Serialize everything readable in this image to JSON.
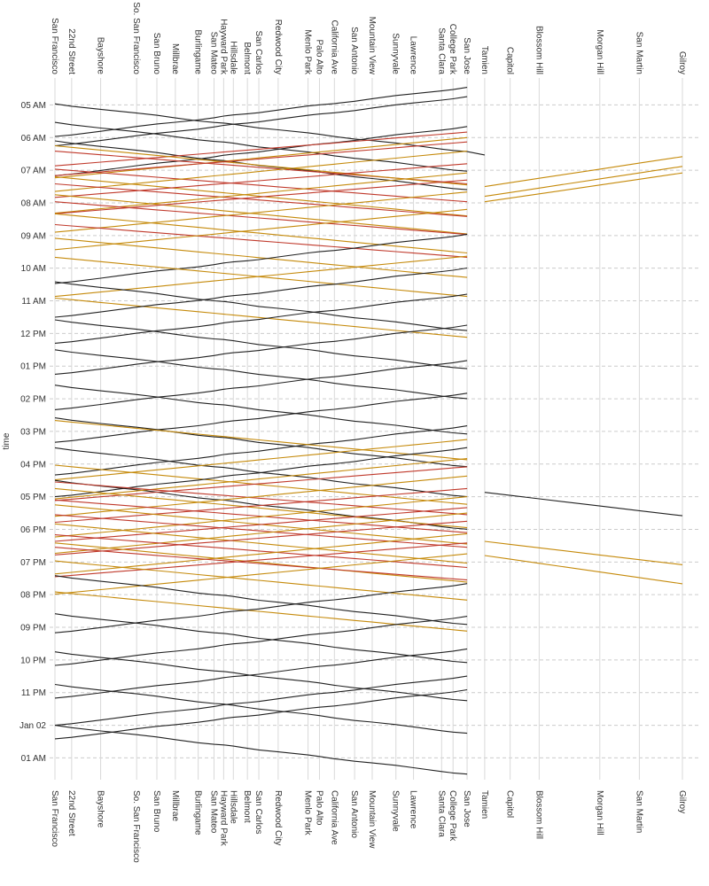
{
  "chart_data": {
    "type": "line",
    "ylabel": "time",
    "stations": [
      {
        "name": "San Francisco",
        "distance": 0
      },
      {
        "name": "22nd Street",
        "distance": 1.9
      },
      {
        "name": "Bayshore",
        "distance": 5.2
      },
      {
        "name": "So. San Francisco",
        "distance": 9.3
      },
      {
        "name": "San Bruno",
        "distance": 11.6
      },
      {
        "name": "Millbrae",
        "distance": 13.7
      },
      {
        "name": "Burlingame",
        "distance": 16.3
      },
      {
        "name": "San Mateo",
        "distance": 18.1
      },
      {
        "name": "Hayward Park",
        "distance": 19.2
      },
      {
        "name": "Hillsdale",
        "distance": 20.3
      },
      {
        "name": "Belmont",
        "distance": 21.9
      },
      {
        "name": "San Carlos",
        "distance": 23.2
      },
      {
        "name": "Redwood City",
        "distance": 25.4
      },
      {
        "name": "Menlo Park",
        "distance": 28.8
      },
      {
        "name": "Palo Alto",
        "distance": 30.1
      },
      {
        "name": "California Ave",
        "distance": 31.8
      },
      {
        "name": "San Antonio",
        "distance": 34.1
      },
      {
        "name": "Mountain View",
        "distance": 36.1
      },
      {
        "name": "Sunnyvale",
        "distance": 38.8
      },
      {
        "name": "Lawrence",
        "distance": 40.8
      },
      {
        "name": "Santa Clara",
        "distance": 44.0
      },
      {
        "name": "College Park",
        "distance": 45.3
      },
      {
        "name": "San Jose",
        "distance": 46.9
      },
      {
        "name": "Tamien",
        "distance": 48.9
      },
      {
        "name": "Capitol",
        "distance": 51.8
      },
      {
        "name": "Blossom Hill",
        "distance": 55.1
      },
      {
        "name": "Morgan Hill",
        "distance": 62.0
      },
      {
        "name": "San Martin",
        "distance": 66.5
      },
      {
        "name": "Gilroy",
        "distance": 71.4
      }
    ],
    "y_ticks": [
      "05 AM",
      "06 AM",
      "07 AM",
      "08 AM",
      "09 AM",
      "10 AM",
      "11 AM",
      "12 PM",
      "01 PM",
      "02 PM",
      "03 PM",
      "04 PM",
      "05 PM",
      "06 PM",
      "07 PM",
      "08 PM",
      "09 PM",
      "10 PM",
      "11 PM",
      "Jan 02",
      "01 AM"
    ],
    "ylim": [
      "04:30",
      "25:40"
    ],
    "x_axis": "station distance along the line, labels at top and bottom",
    "colors": {
      "local": "#222222",
      "limited": "#c58a0b",
      "express": "#c0392b"
    },
    "train_types": {
      "N": "local",
      "L": "limited",
      "B": "express"
    },
    "trains": [
      {
        "t": "N",
        "d": "S",
        "start": "04:58",
        "dur": 88,
        "via_sj": true,
        "ext": "Tamien"
      },
      {
        "t": "N",
        "d": "N",
        "start": "04:28",
        "dur": 90,
        "from": "San Jose"
      },
      {
        "t": "N",
        "d": "S",
        "start": "05:32",
        "dur": 90,
        "from": "San Francisco"
      },
      {
        "t": "N",
        "d": "N",
        "start": "04:45",
        "dur": 90,
        "from": "San Jose"
      },
      {
        "t": "N",
        "d": "S",
        "start": "06:06",
        "dur": 90,
        "from": "San Francisco"
      },
      {
        "t": "N",
        "d": "N",
        "start": "05:40",
        "dur": 90,
        "from": "San Jose"
      },
      {
        "t": "B",
        "d": "S",
        "start": "06:25",
        "dur": 60,
        "from": "San Francisco"
      },
      {
        "t": "B",
        "d": "N",
        "start": "05:50",
        "dur": 62,
        "from": "San Jose"
      },
      {
        "t": "L",
        "d": "S",
        "start": "06:15",
        "dur": 72,
        "from": "San Francisco"
      },
      {
        "t": "L",
        "d": "N",
        "start": "06:00",
        "dur": 74,
        "from": "San Jose"
      },
      {
        "t": "B",
        "d": "S",
        "start": "06:58",
        "dur": 60,
        "from": "San Francisco"
      },
      {
        "t": "B",
        "d": "N",
        "start": "06:08",
        "dur": 62,
        "from": "San Jose"
      },
      {
        "t": "L",
        "d": "S",
        "start": "07:12",
        "dur": 72,
        "from": "San Francisco"
      },
      {
        "t": "L",
        "d": "N",
        "start": "06:25",
        "dur": 74,
        "from": "San Jose"
      },
      {
        "t": "B",
        "d": "S",
        "start": "07:25",
        "dur": 60,
        "from": "San Francisco"
      },
      {
        "t": "B",
        "d": "N",
        "start": "06:48",
        "dur": 62,
        "from": "San Jose"
      },
      {
        "t": "L",
        "d": "S",
        "start": "07:45",
        "dur": 72,
        "from": "San Francisco"
      },
      {
        "t": "L",
        "d": "N",
        "start": "07:05",
        "dur": 74,
        "from": "San Jose"
      },
      {
        "t": "B",
        "d": "S",
        "start": "07:58",
        "dur": 60,
        "from": "San Francisco"
      },
      {
        "t": "B",
        "d": "N",
        "start": "07:18",
        "dur": 62,
        "from": "San Jose"
      },
      {
        "t": "L",
        "d": "S",
        "start": "08:20",
        "dur": 72,
        "from": "San Francisco"
      },
      {
        "t": "L",
        "d": "N",
        "start": "07:40",
        "dur": 74,
        "from": "San Jose"
      },
      {
        "t": "B",
        "d": "S",
        "start": "08:40",
        "dur": 60,
        "from": "San Francisco"
      },
      {
        "t": "L",
        "d": "N",
        "start": "08:12",
        "dur": 74,
        "from": "San Jose"
      },
      {
        "t": "L",
        "d": "S",
        "start": "09:05",
        "dur": 72,
        "from": "San Francisco"
      },
      {
        "t": "N",
        "d": "N",
        "start": "08:58",
        "dur": 90,
        "from": "San Jose"
      },
      {
        "t": "L",
        "d": "S",
        "start": "09:40",
        "dur": 72,
        "from": "San Francisco"
      },
      {
        "t": "L",
        "d": "N",
        "start": "09:38",
        "dur": 74,
        "from": "San Jose"
      },
      {
        "t": "L",
        "d": "S",
        "start": "10:55",
        "dur": 72,
        "from": "San Francisco"
      },
      {
        "t": "N",
        "d": "N",
        "start": "10:00",
        "dur": 90,
        "from": "San Jose"
      },
      {
        "t": "N",
        "d": "S",
        "start": "10:25",
        "dur": 90,
        "from": "San Francisco"
      },
      {
        "t": "N",
        "d": "N",
        "start": "10:48",
        "dur": 90,
        "from": "San Jose"
      },
      {
        "t": "N",
        "d": "S",
        "start": "11:35",
        "dur": 90,
        "from": "San Francisco"
      },
      {
        "t": "N",
        "d": "N",
        "start": "11:45",
        "dur": 90,
        "from": "San Jose"
      },
      {
        "t": "N",
        "d": "S",
        "start": "12:30",
        "dur": 90,
        "from": "San Francisco"
      },
      {
        "t": "N",
        "d": "N",
        "start": "12:50",
        "dur": 90,
        "from": "San Jose"
      },
      {
        "t": "N",
        "d": "S",
        "start": "13:35",
        "dur": 90,
        "from": "San Francisco"
      },
      {
        "t": "N",
        "d": "N",
        "start": "13:50",
        "dur": 90,
        "from": "San Jose"
      },
      {
        "t": "N",
        "d": "S",
        "start": "14:35",
        "dur": 90,
        "from": "San Francisco"
      },
      {
        "t": "N",
        "d": "N",
        "start": "14:50",
        "dur": 90,
        "from": "San Jose"
      },
      {
        "t": "L",
        "d": "S",
        "start": "14:40",
        "dur": 72,
        "from": "San Francisco"
      },
      {
        "t": "N",
        "d": "S",
        "start": "15:30",
        "dur": 90,
        "from": "San Francisco"
      },
      {
        "t": "L",
        "d": "N",
        "start": "15:15",
        "dur": 74,
        "from": "San Jose"
      },
      {
        "t": "L",
        "d": "S",
        "start": "16:02",
        "dur": 72,
        "from": "San Francisco"
      },
      {
        "t": "N",
        "d": "N",
        "start": "15:30",
        "dur": 90,
        "from": "San Jose"
      },
      {
        "t": "N",
        "d": "S",
        "start": "16:30",
        "dur": 90,
        "from": "San Francisco"
      },
      {
        "t": "L",
        "d": "N",
        "start": "15:50",
        "dur": 74,
        "from": "San Jose"
      },
      {
        "t": "B",
        "d": "S",
        "start": "16:33",
        "dur": 60,
        "from": "San Francisco"
      },
      {
        "t": "B",
        "d": "N",
        "start": "16:05",
        "dur": 62,
        "from": "San Jose"
      },
      {
        "t": "L",
        "d": "S",
        "start": "16:45",
        "dur": 72,
        "from": "San Francisco"
      },
      {
        "t": "L",
        "d": "N",
        "start": "16:22",
        "dur": 74,
        "from": "San Jose"
      },
      {
        "t": "B",
        "d": "S",
        "start": "17:06",
        "dur": 60,
        "from": "San Francisco"
      },
      {
        "t": "B",
        "d": "N",
        "start": "16:45",
        "dur": 62,
        "from": "San Jose"
      },
      {
        "t": "L",
        "d": "S",
        "start": "17:15",
        "dur": 72,
        "from": "San Francisco"
      },
      {
        "t": "L",
        "d": "N",
        "start": "17:00",
        "dur": 74,
        "from": "San Jose"
      },
      {
        "t": "B",
        "d": "S",
        "start": "17:33",
        "dur": 60,
        "from": "San Francisco"
      },
      {
        "t": "B",
        "d": "N",
        "start": "17:20",
        "dur": 62,
        "from": "San Jose"
      },
      {
        "t": "L",
        "d": "S",
        "start": "17:50",
        "dur": 72,
        "from": "San Francisco"
      },
      {
        "t": "L",
        "d": "N",
        "start": "17:30",
        "dur": 74,
        "from": "San Jose"
      },
      {
        "t": "B",
        "d": "S",
        "start": "18:10",
        "dur": 60,
        "from": "San Francisco"
      },
      {
        "t": "B",
        "d": "N",
        "start": "17:45",
        "dur": 62,
        "from": "San Jose"
      },
      {
        "t": "L",
        "d": "S",
        "start": "18:25",
        "dur": 72,
        "from": "San Francisco"
      },
      {
        "t": "L",
        "d": "N",
        "start": "18:08",
        "dur": 74,
        "from": "San Jose"
      },
      {
        "t": "B",
        "d": "S",
        "start": "18:33",
        "dur": 60,
        "from": "San Francisco"
      },
      {
        "t": "B",
        "d": "N",
        "start": "18:25",
        "dur": 62,
        "from": "San Jose"
      },
      {
        "t": "L",
        "d": "S",
        "start": "18:58",
        "dur": 72,
        "from": "San Francisco"
      },
      {
        "t": "L",
        "d": "N",
        "start": "18:45",
        "dur": 74,
        "from": "San Jose"
      },
      {
        "t": "N",
        "d": "S",
        "start": "19:25",
        "dur": 90,
        "from": "San Francisco"
      },
      {
        "t": "L",
        "d": "S",
        "start": "19:55",
        "dur": 72,
        "from": "San Francisco"
      },
      {
        "t": "N",
        "d": "N",
        "start": "19:40",
        "dur": 90,
        "from": "San Jose"
      },
      {
        "t": "N",
        "d": "S",
        "start": "20:35",
        "dur": 90,
        "from": "San Francisco"
      },
      {
        "t": "N",
        "d": "N",
        "start": "20:40",
        "dur": 90,
        "from": "San Jose"
      },
      {
        "t": "N",
        "d": "S",
        "start": "21:45",
        "dur": 90,
        "from": "San Francisco"
      },
      {
        "t": "N",
        "d": "N",
        "start": "21:40",
        "dur": 90,
        "from": "San Jose"
      },
      {
        "t": "N",
        "d": "S",
        "start": "22:45",
        "dur": 90,
        "from": "San Francisco"
      },
      {
        "t": "N",
        "d": "N",
        "start": "22:30",
        "dur": 90,
        "from": "San Jose"
      },
      {
        "t": "N",
        "d": "S",
        "start": "24:00",
        "dur": 90,
        "from": "San Francisco"
      },
      {
        "t": "N",
        "d": "N",
        "start": "22:55",
        "dur": 90,
        "from": "San Jose"
      }
    ],
    "gilroy_runs": [
      {
        "t": "L",
        "from_tamien": "07:48",
        "to_gilroy": "06:53"
      },
      {
        "t": "L",
        "from_tamien": "07:30",
        "to_gilroy": "06:35"
      },
      {
        "t": "L",
        "from_tamien": "07:58",
        "to_gilroy": "07:05"
      },
      {
        "t": "N",
        "from_tamien": "16:52",
        "to_gilroy": "17:35"
      },
      {
        "t": "L",
        "from_tamien": "18:22",
        "to_gilroy": "19:05"
      },
      {
        "t": "L",
        "from_tamien": "18:48",
        "to_gilroy": "19:40"
      }
    ]
  }
}
